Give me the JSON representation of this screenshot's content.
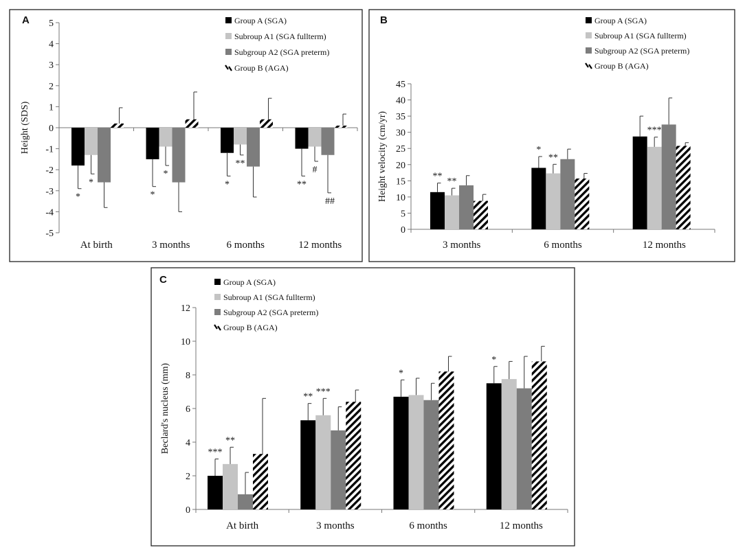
{
  "legend": {
    "a": "Group A (SGA)",
    "a1": "Subroup A1 (SGA fullterm)",
    "a2": "Subgroup A2 (SGA preterm)",
    "b": "Group B (AGA)"
  },
  "colors": {
    "a": "#000000",
    "a1": "#c4c4c4",
    "a2": "#7d7d7d",
    "b": "hatch"
  },
  "chart_data": [
    {
      "panel": "A",
      "type": "bar",
      "ylabel": "Height  (SDS)",
      "ylim": [
        -5,
        5
      ],
      "yticks": [
        5,
        4,
        3,
        2,
        1,
        0,
        -1,
        -2,
        -3,
        -4,
        -5
      ],
      "categories": [
        "At birth",
        "3 months",
        "6 months",
        "12 months"
      ],
      "series": [
        {
          "name": "Group A (SGA)",
          "values": [
            -1.8,
            -1.5,
            -1.2,
            -1.0
          ],
          "errors": [
            1.1,
            1.3,
            1.1,
            1.3
          ]
        },
        {
          "name": "Subroup A1 (SGA fullterm)",
          "values": [
            -1.3,
            -0.9,
            -0.8,
            -0.9
          ],
          "errors": [
            0.9,
            0.9,
            0.5,
            0.7
          ]
        },
        {
          "name": "Subgroup A2 (SGA preterm)",
          "values": [
            -2.6,
            -2.6,
            -1.85,
            -1.3
          ],
          "errors": [
            1.2,
            1.4,
            1.45,
            1.8
          ]
        },
        {
          "name": "Group B (AGA)",
          "values": [
            0.2,
            0.4,
            0.4,
            0.1
          ],
          "errors": [
            0.75,
            1.3,
            1.0,
            0.55
          ]
        }
      ],
      "annotations": [
        {
          "category": 0,
          "series": 0,
          "text": "*"
        },
        {
          "category": 0,
          "series": 1,
          "text": "*"
        },
        {
          "category": 1,
          "series": 0,
          "text": "*"
        },
        {
          "category": 1,
          "series": 1,
          "text": "*"
        },
        {
          "category": 2,
          "series": 0,
          "text": "*"
        },
        {
          "category": 2,
          "series": 1,
          "text": "**"
        },
        {
          "category": 3,
          "series": 0,
          "text": "**"
        },
        {
          "category": 3,
          "series": 1,
          "text": "#"
        },
        {
          "category": 3,
          "series": 2,
          "text": "##"
        }
      ]
    },
    {
      "panel": "B",
      "type": "bar",
      "ylabel": "Height  velocity  (cm/yr)",
      "ylim": [
        0,
        45
      ],
      "yticks": [
        0,
        5,
        10,
        15,
        20,
        25,
        30,
        35,
        40,
        45
      ],
      "categories": [
        "3 months",
        "6 months",
        "12 months"
      ],
      "series": [
        {
          "name": "Group A (SGA)",
          "values": [
            11.5,
            19.0,
            28.7
          ],
          "errors": [
            2.8,
            3.5,
            6.3
          ]
        },
        {
          "name": "Subroup A1 (SGA fullterm)",
          "values": [
            10.5,
            17.3,
            25.5
          ],
          "errors": [
            2.2,
            2.8,
            3.0
          ]
        },
        {
          "name": "Subgroup A2 (SGA preterm)",
          "values": [
            13.6,
            21.7,
            32.4
          ],
          "errors": [
            3.0,
            3.1,
            8.2
          ]
        },
        {
          "name": "Group B (AGA)",
          "values": [
            8.8,
            15.7,
            25.8
          ],
          "errors": [
            2.0,
            1.6,
            1.0
          ]
        }
      ],
      "annotations": [
        {
          "category": 0,
          "series": 0,
          "text": "**"
        },
        {
          "category": 0,
          "series": 1,
          "text": "**"
        },
        {
          "category": 1,
          "series": 0,
          "text": "*"
        },
        {
          "category": 1,
          "series": 1,
          "text": "**"
        },
        {
          "category": 2,
          "series": 1,
          "text": "***"
        }
      ]
    },
    {
      "panel": "C",
      "type": "bar",
      "ylabel": "Beclard's  nucleus  (mm)",
      "ylim": [
        0,
        12
      ],
      "yticks": [
        0,
        2,
        4,
        6,
        8,
        10,
        12
      ],
      "categories": [
        "At birth",
        "3 months",
        "6 months",
        "12 months"
      ],
      "series": [
        {
          "name": "Group A (SGA)",
          "values": [
            2.0,
            5.3,
            6.7,
            7.5
          ],
          "errors": [
            1.0,
            1.0,
            1.0,
            1.0
          ]
        },
        {
          "name": "Subroup A1 (SGA fullterm)",
          "values": [
            2.7,
            5.6,
            6.8,
            7.75
          ],
          "errors": [
            1.0,
            1.0,
            1.0,
            1.05
          ]
        },
        {
          "name": "Subgroup A2 (SGA preterm)",
          "values": [
            0.9,
            4.7,
            6.5,
            7.2
          ],
          "errors": [
            1.3,
            1.4,
            1.0,
            1.9
          ]
        },
        {
          "name": "Group B (AGA)",
          "values": [
            3.3,
            6.4,
            8.2,
            8.8
          ],
          "errors": [
            3.3,
            0.7,
            0.9,
            0.9
          ]
        }
      ],
      "annotations": [
        {
          "category": 0,
          "series": 0,
          "text": "***"
        },
        {
          "category": 0,
          "series": 1,
          "text": "**"
        },
        {
          "category": 1,
          "series": 0,
          "text": "**"
        },
        {
          "category": 1,
          "series": 1,
          "text": "***"
        },
        {
          "category": 2,
          "series": 0,
          "text": "*"
        },
        {
          "category": 3,
          "series": 0,
          "text": "*"
        }
      ]
    }
  ]
}
